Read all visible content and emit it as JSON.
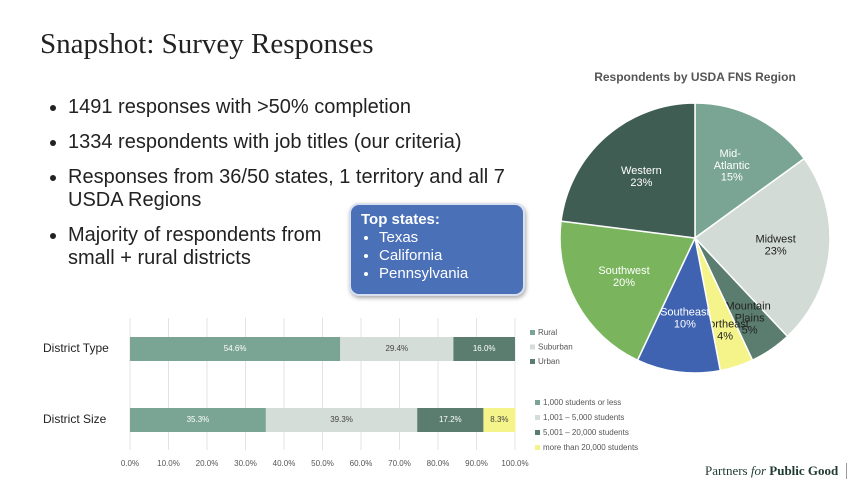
{
  "slide": {
    "title": "Snapshot: Survey Responses",
    "bullets": [
      "1491 responses with >50% completion",
      "1334 respondents with job titles (our criteria)",
      "Responses from 36/50 states, 1 territory and all 7 USDA Regions",
      "Majority of respondents from small + rural districts"
    ],
    "callout": {
      "heading": "Top states:",
      "items": [
        "Texas",
        "California",
        "Pennsylvania"
      ]
    },
    "footer": [
      "Partners",
      "for",
      "Public Good"
    ]
  },
  "chart_data": [
    {
      "type": "pie",
      "title": "Respondents by USDA FNS Region",
      "categories": [
        "Mid- Atlantic",
        "Midwest",
        "Mountain Plains",
        "Northeast",
        "Southeast",
        "Southwest",
        "Western"
      ],
      "values": [
        15,
        23,
        5,
        4,
        10,
        20,
        23
      ],
      "value_labels": [
        "15%",
        "23%",
        "5%",
        "4%",
        "10%",
        "20%",
        "23%"
      ],
      "colors": [
        "#7aa595",
        "#d2dbd6",
        "#5b7d6f",
        "#f4f48a",
        "#3f63b1",
        "#7ab55d",
        "#3f5d53"
      ]
    },
    {
      "type": "stacked_barh",
      "categories": [
        "District Type",
        "District Size"
      ],
      "xlim": [
        0,
        100
      ],
      "xticks": [
        {
          "value": 0,
          "label": "0.0%"
        },
        {
          "value": 10,
          "label": "10.0%"
        },
        {
          "value": 20,
          "label": "20.0%"
        },
        {
          "value": 30,
          "label": "30.0%"
        },
        {
          "value": 40,
          "label": "40.0%"
        },
        {
          "value": 50,
          "label": "50.0%"
        },
        {
          "value": 60,
          "label": "60.0%"
        },
        {
          "value": 70,
          "label": "70.0%"
        },
        {
          "value": 80,
          "label": "80.0%"
        },
        {
          "value": 90,
          "label": "90.0%"
        },
        {
          "value": 100,
          "label": "100.0%"
        }
      ],
      "grid": true,
      "series": [
        {
          "name": "Rural",
          "color": "#7aa595",
          "values": [
            54.6,
            null
          ],
          "value_labels": [
            "54.6%",
            null
          ]
        },
        {
          "name": "Suburban",
          "color": "#d5ddd8",
          "values": [
            29.4,
            null
          ],
          "value_labels": [
            "29.4%",
            null
          ]
        },
        {
          "name": "Urban",
          "color": "#5b7d6f",
          "values": [
            16.0,
            null
          ],
          "value_labels": [
            "16.0%",
            null
          ]
        },
        {
          "name": "1,000 students or less",
          "color": "#7aa595",
          "values": [
            null,
            35.3
          ],
          "value_labels": [
            null,
            "35.3%"
          ]
        },
        {
          "name": "1,001 – 5,000 students",
          "color": "#d5ddd8",
          "values": [
            null,
            39.3
          ],
          "value_labels": [
            null,
            "39.3%"
          ]
        },
        {
          "name": "5,001 – 20,000 students",
          "color": "#5b7d6f",
          "values": [
            null,
            17.2
          ],
          "value_labels": [
            null,
            "17.2%"
          ]
        },
        {
          "name": "more than 20,000 students",
          "color": "#f4f48a",
          "values": [
            null,
            8.3
          ],
          "value_labels": [
            null,
            "8.3%"
          ]
        }
      ]
    }
  ]
}
